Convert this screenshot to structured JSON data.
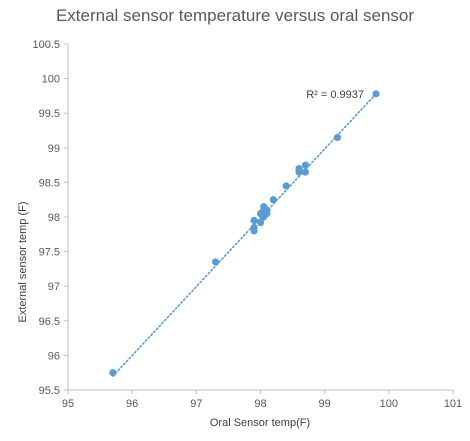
{
  "chart_data": {
    "type": "scatter",
    "title": "External sensor temperature versus oral sensor",
    "xlabel": "Oral Sensor temp(F)",
    "ylabel": "External sensor temp (F)",
    "xlim": [
      95,
      101
    ],
    "ylim": [
      95.5,
      100.5
    ],
    "xticks": [
      95,
      96,
      97,
      98,
      99,
      100,
      101
    ],
    "yticks": [
      95.5,
      96,
      96.5,
      97,
      97.5,
      98,
      98.5,
      99,
      99.5,
      100,
      100.5
    ],
    "grid": false,
    "series": [
      {
        "points": [
          [
            95.7,
            95.75
          ],
          [
            97.3,
            97.35
          ],
          [
            97.9,
            97.8
          ],
          [
            97.9,
            97.85
          ],
          [
            97.9,
            97.95
          ],
          [
            98.0,
            97.92
          ],
          [
            98.0,
            98.05
          ],
          [
            98.05,
            98.1
          ],
          [
            98.05,
            98.0
          ],
          [
            98.1,
            98.05
          ],
          [
            98.1,
            98.1
          ],
          [
            98.05,
            98.15
          ],
          [
            98.2,
            98.25
          ],
          [
            98.4,
            98.45
          ],
          [
            98.6,
            98.65
          ],
          [
            98.6,
            98.7
          ],
          [
            98.7,
            98.65
          ],
          [
            98.7,
            98.75
          ],
          [
            99.2,
            99.15
          ],
          [
            99.8,
            99.78
          ]
        ]
      }
    ],
    "trendline": {
      "type": "linear",
      "x_range": [
        95.7,
        99.8
      ],
      "y_range": [
        95.7,
        99.78
      ],
      "r2_label": "R² = 0.9937"
    },
    "colors": {
      "marker": "#5b9bd5",
      "trendline": "#5b9bd5",
      "axis": "#bfbfbf",
      "tick_text": "#595959"
    }
  }
}
